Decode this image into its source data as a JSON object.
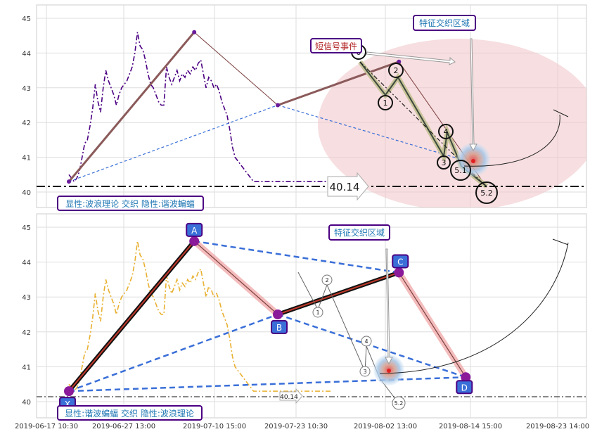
{
  "chart_data": [
    {
      "type": "line",
      "panel": "top",
      "ylim": [
        39.6,
        45.4
      ],
      "y_ticks": [
        40,
        41,
        42,
        43,
        44,
        45
      ],
      "grid": true,
      "series": [
        {
          "style": "dash-dot",
          "color": "#4b0082",
          "x": [
            0,
            0.5,
            1,
            1.5,
            2,
            2.5,
            3,
            3.5,
            4,
            4.5,
            5,
            5.5,
            6,
            6.5,
            7,
            7.5,
            8,
            8.5,
            9,
            9.5,
            10,
            10.5,
            11,
            11.5,
            12,
            12.5,
            13,
            13.5,
            14,
            14.5,
            15,
            15.5,
            16,
            16.5,
            17,
            17.5,
            18,
            18.5,
            19,
            19.5,
            20,
            20.5,
            21,
            21.5,
            22,
            22.5,
            23,
            23.5,
            24,
            24.5,
            25,
            25.5,
            26,
            26.5,
            27,
            27.5,
            28,
            28.5,
            29,
            29.5,
            30,
            30.5,
            31,
            31.5,
            32,
            32.5,
            33,
            33.5,
            34,
            34.5,
            35,
            35.5,
            36,
            36.5,
            37,
            37.5,
            38,
            38.5,
            39,
            39.5,
            40,
            40.5,
            41,
            41.5,
            42,
            42.5,
            43,
            43.5,
            44,
            44.5,
            45,
            45.5,
            46,
            46.5,
            47,
            47.5,
            48,
            48.5,
            49,
            49.5,
            50
          ],
          "y": [
            40.5,
            40.4,
            40.3,
            40.4,
            40.6,
            41.0,
            41.4,
            41.5,
            41.9,
            42.4,
            43.1,
            42.6,
            42.3,
            43.0,
            43.5,
            43.2,
            43.0,
            42.8,
            42.5,
            42.8,
            43.0,
            43.1,
            43.2,
            43.4,
            43.6,
            44.0,
            44.6,
            44.2,
            44.1,
            43.8,
            43.4,
            43.1,
            43.0,
            42.8,
            42.6,
            42.5,
            42.5,
            43.6,
            43.3,
            43.1,
            43.3,
            43.5,
            43.2,
            43.4,
            43.3,
            43.5,
            43.4,
            43.6,
            43.5,
            43.7,
            43.8,
            43.4,
            43.0,
            43.3,
            43.2,
            43.0,
            43.1,
            42.9,
            42.6,
            42.4,
            42.2,
            41.8,
            41.3,
            41.0,
            40.9,
            40.8,
            40.7,
            40.6,
            40.5,
            40.4,
            40.3,
            40.3,
            40.3,
            40.3,
            40.3,
            40.3,
            40.3,
            40.3,
            40.3,
            40.3,
            40.3,
            40.3,
            40.3,
            40.3,
            40.3,
            40.3,
            40.3,
            40.3,
            40.3,
            40.3,
            40.3,
            40.3,
            40.3,
            40.3,
            40.3,
            40.3,
            40.3,
            40.3,
            40.3,
            40.3,
            40.3
          ]
        }
      ],
      "zigzag": {
        "x": [
          0,
          0.3,
          0.5,
          0.79,
          1.0
        ],
        "y": [
          40.3,
          44.6,
          42.5,
          43.75,
          40.14
        ]
      },
      "horizontal_line": 40.14,
      "price_label": "40.14",
      "wave_labels": [
        "0",
        "1",
        "2",
        "3",
        "4",
        "5.1",
        "5.2"
      ],
      "annotations": [
        {
          "text": "短信号事件",
          "color": "#b22222"
        },
        {
          "text": "特征交织区域",
          "color": "#1f77b4"
        }
      ],
      "footer_label": "显性:波浪理论 交织 隐性:谐波蝙蝠"
    },
    {
      "type": "line",
      "panel": "bottom",
      "ylim": [
        39.6,
        45.4
      ],
      "y_ticks": [
        40,
        41,
        42,
        43,
        44,
        45
      ],
      "grid": true,
      "x_tick_labels": [
        "2019-06-17 10:30",
        "2019-06-27 13:00",
        "2019-07-10 15:00",
        "2019-07-23 10:30",
        "2019-08-02 13:00",
        "2019-08-14 15:00",
        "2019-08-23 14:00"
      ],
      "harmonic_points": [
        {
          "label": "X",
          "y": 40.3
        },
        {
          "label": "A",
          "y": 44.6
        },
        {
          "label": "B",
          "y": 42.5
        },
        {
          "label": "C",
          "y": 43.7
        },
        {
          "label": "D",
          "y": 40.7
        }
      ],
      "horizontal_line": 40.14,
      "price_label": "40.14",
      "wave_labels": [
        "1",
        "2",
        "3",
        "4",
        "5.2"
      ],
      "annotations": [
        {
          "text": "特征交织区域",
          "color": "#1f77b4"
        }
      ],
      "footer_label": "显性:谐波蝙蝠 交织 隐性:波浪理论"
    }
  ]
}
